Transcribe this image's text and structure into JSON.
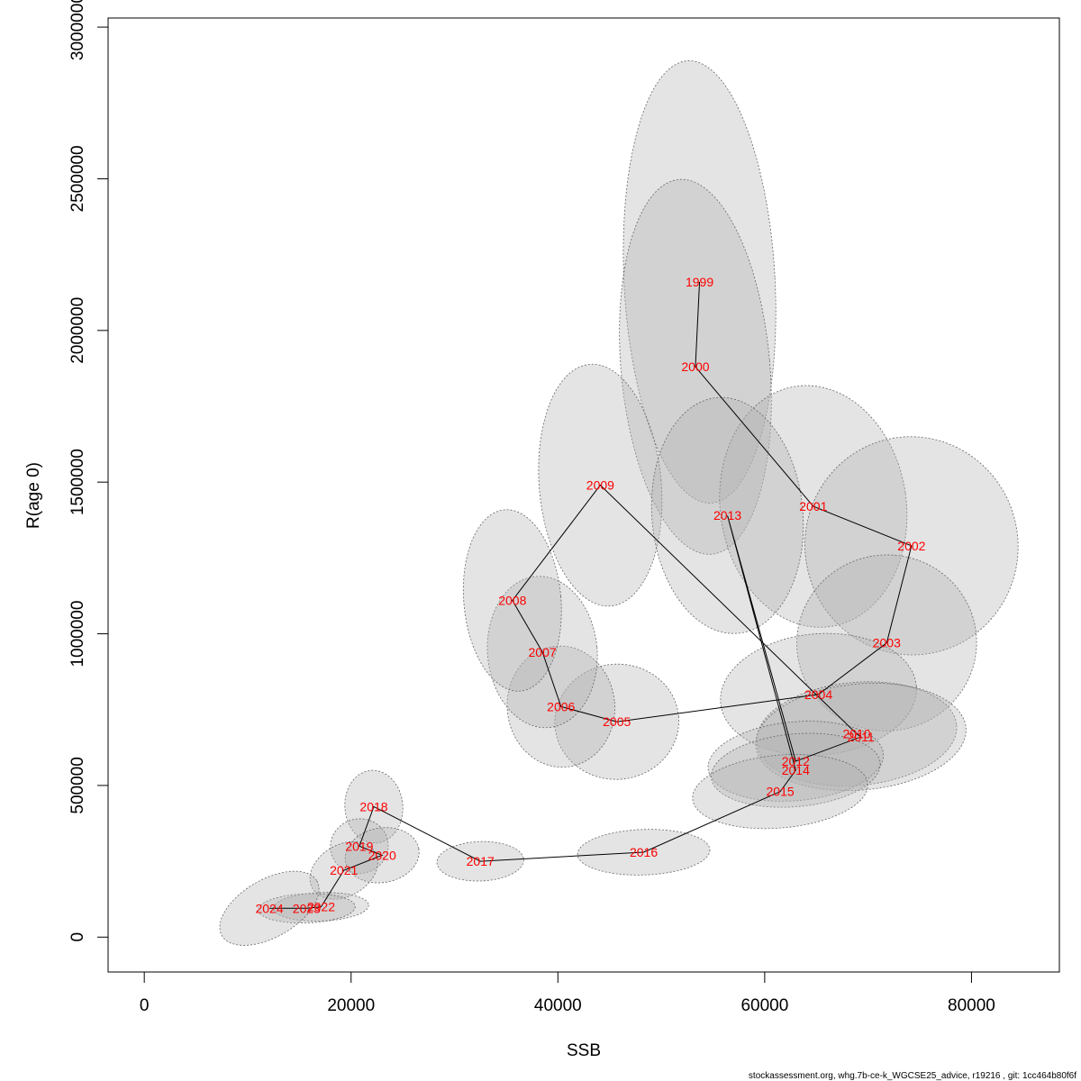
{
  "chart_data": {
    "type": "scatter",
    "title": "",
    "xlabel": "SSB",
    "ylabel": "R(age 0)",
    "xlim": [
      -3500,
      88500
    ],
    "ylim": [
      -115000,
      3030000
    ],
    "x_ticks": [
      0,
      20000,
      40000,
      60000,
      80000
    ],
    "x_tick_labels": [
      "0",
      "20000",
      "40000",
      "60000",
      "80000"
    ],
    "y_ticks": [
      0,
      500000,
      1000000,
      1500000,
      2000000,
      2500000,
      3000000
    ],
    "y_tick_labels": [
      "0",
      "500000",
      "1000000",
      "1500000",
      "2000000",
      "2500000",
      "3000000"
    ],
    "grid": false,
    "legend": "none",
    "colors": {
      "label": "#ff0000",
      "ellipse_fill": "#b3b3b3",
      "ellipse_stroke": "#666666",
      "line": "#000000"
    },
    "points": [
      {
        "year": "1999",
        "ssb": 53700,
        "r": 2160000,
        "ellipse": {
          "rx": 7300,
          "ry": 730000,
          "rot": -3
        }
      },
      {
        "year": "2000",
        "ssb": 53300,
        "r": 1880000,
        "ellipse": {
          "rx": 7200,
          "ry": 620000,
          "rot": -5
        }
      },
      {
        "year": "2001",
        "ssb": 64700,
        "r": 1420000,
        "ellipse": {
          "rx": 9000,
          "ry": 400000,
          "rot": -8
        }
      },
      {
        "year": "2002",
        "ssb": 74200,
        "r": 1290000,
        "ellipse": {
          "rx": 10300,
          "ry": 360000,
          "rot": -10
        }
      },
      {
        "year": "2003",
        "ssb": 71800,
        "r": 970000,
        "ellipse": {
          "rx": 8700,
          "ry": 290000,
          "rot": -8
        }
      },
      {
        "year": "2004",
        "ssb": 65200,
        "r": 800000,
        "ellipse": {
          "rx": 9500,
          "ry": 200000,
          "rot": -5
        }
      },
      {
        "year": "2005",
        "ssb": 45700,
        "r": 710000,
        "ellipse": {
          "rx": 6000,
          "ry": 190000,
          "rot": -5
        }
      },
      {
        "year": "2006",
        "ssb": 40300,
        "r": 760000,
        "ellipse": {
          "rx": 5200,
          "ry": 200000,
          "rot": -5
        }
      },
      {
        "year": "2007",
        "ssb": 38500,
        "r": 940000,
        "ellipse": {
          "rx": 5300,
          "ry": 250000,
          "rot": -5
        }
      },
      {
        "year": "2008",
        "ssb": 35600,
        "r": 1110000,
        "ellipse": {
          "rx": 4700,
          "ry": 300000,
          "rot": -5
        }
      },
      {
        "year": "2009",
        "ssb": 44100,
        "r": 1490000,
        "ellipse": {
          "rx": 5900,
          "ry": 400000,
          "rot": -5
        }
      },
      {
        "year": "2010",
        "ssb": 68900,
        "r": 670000,
        "ellipse": {
          "rx": 9700,
          "ry": 170000,
          "rot": -5
        }
      },
      {
        "year": "2011",
        "ssb": 69300,
        "r": 660000,
        "ellipse": {
          "rx": 10200,
          "ry": 175000,
          "rot": -5
        }
      },
      {
        "year": "2012",
        "ssb": 63000,
        "r": 580000,
        "ellipse": {
          "rx": 8500,
          "ry": 130000,
          "rot": -5
        }
      },
      {
        "year": "2013",
        "ssb": 56400,
        "r": 1390000,
        "ellipse": {
          "rx": 7300,
          "ry": 390000,
          "rot": -5
        }
      },
      {
        "year": "2014",
        "ssb": 63000,
        "r": 550000,
        "ellipse": {
          "rx": 8200,
          "ry": 120000,
          "rot": -5
        }
      },
      {
        "year": "2015",
        "ssb": 61500,
        "r": 480000,
        "ellipse": {
          "rx": 8500,
          "ry": 120000,
          "rot": -5
        }
      },
      {
        "year": "2016",
        "ssb": 48300,
        "r": 280000,
        "ellipse": {
          "rx": 6400,
          "ry": 75000,
          "rot": -2
        }
      },
      {
        "year": "2017",
        "ssb": 32500,
        "r": 250000,
        "ellipse": {
          "rx": 4200,
          "ry": 65000,
          "rot": -2
        }
      },
      {
        "year": "2018",
        "ssb": 22200,
        "r": 430000,
        "ellipse": {
          "rx": 2800,
          "ry": 120000,
          "rot": -5
        }
      },
      {
        "year": "2019",
        "ssb": 20800,
        "r": 300000,
        "ellipse": {
          "rx": 2800,
          "ry": 90000,
          "rot": -10
        }
      },
      {
        "year": "2020",
        "ssb": 23000,
        "r": 270000,
        "ellipse": {
          "rx": 3600,
          "ry": 90000,
          "rot": -10
        }
      },
      {
        "year": "2021",
        "ssb": 19300,
        "r": 220000,
        "ellipse": {
          "rx": 3500,
          "ry": 85000,
          "rot": -30
        }
      },
      {
        "year": "2022",
        "ssb": 17100,
        "r": 100000,
        "ellipse": {
          "rx": 4600,
          "ry": 47000,
          "rot": -2
        }
      },
      {
        "year": "2023",
        "ssb": 15700,
        "r": 95000,
        "ellipse": {
          "rx": 4700,
          "ry": 48000,
          "rot": -2
        }
      },
      {
        "year": "2024",
        "ssb": 12100,
        "r": 95000,
        "ellipse": {
          "rx": 5300,
          "ry": 95000,
          "rot": -30
        }
      }
    ]
  },
  "footer": {
    "credit": "stockassessment.org, whg.7b-ce-k_WGCSE25_advice, r19216 , git: 1cc464b80f6f"
  }
}
